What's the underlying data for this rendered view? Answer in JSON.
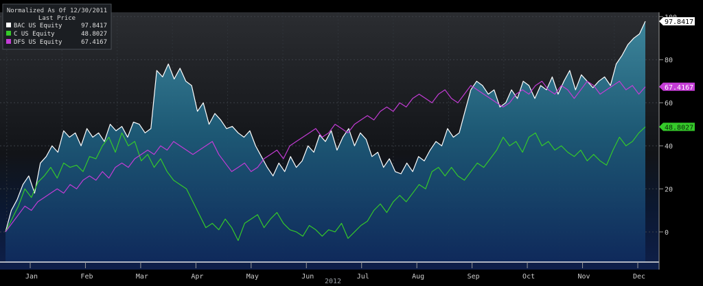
{
  "chart_data": {
    "type": "area",
    "legend": {
      "header_line1": "Normalized As Of 12/30/2011",
      "header_line2": "Last Price",
      "placement": "top-left"
    },
    "x_axis": {
      "months": [
        "Jan",
        "Feb",
        "Mar",
        "Apr",
        "May",
        "Jun",
        "Jul",
        "Aug",
        "Sep",
        "Oct",
        "Nov",
        "Dec"
      ],
      "year_label": "2012"
    },
    "y_axis": {
      "ticks": [
        0,
        20,
        40,
        60,
        80,
        100
      ],
      "range": [
        -14,
        102
      ],
      "side": "right"
    },
    "grid": true,
    "series": [
      {
        "name": "BAC US Equity",
        "last_value": "97.8417",
        "color": "#ffffff",
        "fill": "teal-gradient",
        "values": [
          0,
          10,
          15,
          22,
          26,
          18,
          32,
          35,
          40,
          37,
          47,
          44,
          46,
          40,
          48,
          44,
          46,
          42,
          50,
          47,
          49,
          44,
          51,
          50,
          46,
          48,
          75,
          72,
          78,
          71,
          76,
          70,
          68,
          56,
          60,
          50,
          55,
          52,
          48,
          49,
          46,
          44,
          47,
          40,
          35,
          30,
          26,
          32,
          28,
          35,
          30,
          33,
          40,
          37,
          45,
          42,
          47,
          38,
          44,
          48,
          40,
          46,
          43,
          35,
          37,
          30,
          34,
          28,
          27,
          32,
          28,
          35,
          33,
          38,
          42,
          40,
          48,
          44,
          46,
          56,
          66,
          70,
          68,
          64,
          66,
          58,
          60,
          66,
          62,
          70,
          68,
          62,
          68,
          66,
          72,
          64,
          70,
          75,
          66,
          73,
          70,
          67,
          70,
          72,
          68,
          78,
          82,
          87,
          90,
          92,
          97.84
        ]
      },
      {
        "name": "C US Equity",
        "last_value": "48.8027",
        "color": "#35c92a",
        "values": [
          0,
          6,
          12,
          20,
          16,
          23,
          26,
          30,
          25,
          32,
          30,
          31,
          28,
          35,
          34,
          40,
          44,
          37,
          46,
          40,
          42,
          33,
          36,
          30,
          34,
          28,
          24,
          22,
          20,
          14,
          8,
          2,
          4,
          1,
          6,
          2,
          -4,
          4,
          6,
          8,
          2,
          6,
          9,
          4,
          1,
          0,
          -2,
          3,
          1,
          -2,
          1,
          0,
          4,
          -3,
          0,
          3,
          5,
          10,
          13,
          9,
          14,
          17,
          14,
          18,
          22,
          20,
          28,
          30,
          26,
          30,
          26,
          24,
          28,
          32,
          30,
          34,
          38,
          44,
          40,
          42,
          37,
          44,
          46,
          40,
          42,
          38,
          40,
          37,
          35,
          38,
          33,
          36,
          33,
          31,
          38,
          44,
          40,
          42,
          46,
          48.8
        ]
      },
      {
        "name": "DFS US Equity",
        "last_value": "67.4167",
        "color": "#c43cd6",
        "values": [
          0,
          4,
          8,
          12,
          10,
          14,
          16,
          18,
          20,
          18,
          22,
          20,
          24,
          26,
          24,
          28,
          25,
          30,
          32,
          30,
          34,
          36,
          38,
          36,
          40,
          38,
          42,
          40,
          38,
          36,
          38,
          40,
          42,
          36,
          32,
          28,
          30,
          32,
          28,
          30,
          34,
          36,
          38,
          34,
          40,
          42,
          44,
          46,
          48,
          44,
          46,
          50,
          48,
          46,
          50,
          52,
          54,
          52,
          56,
          58,
          56,
          60,
          58,
          62,
          64,
          62,
          60,
          64,
          66,
          62,
          60,
          64,
          68,
          66,
          64,
          62,
          60,
          58,
          60,
          64,
          66,
          64,
          68,
          70,
          66,
          64,
          68,
          66,
          62,
          66,
          70,
          68,
          64,
          66,
          68,
          70,
          66,
          68,
          64,
          67.42
        ]
      }
    ]
  }
}
